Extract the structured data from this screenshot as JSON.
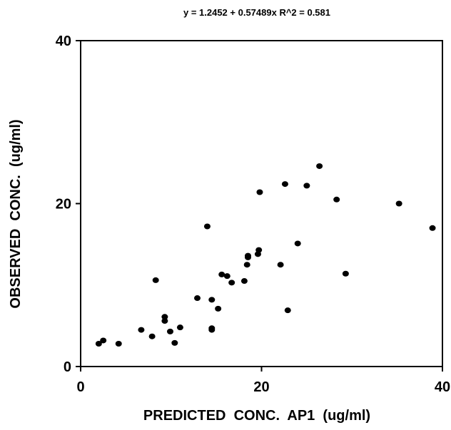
{
  "chart_data": {
    "type": "scatter",
    "title": "y = 1.2452 + 0.57489x   R^2 = 0.581",
    "xlabel": "PREDICTED  CONC.  AP1  (ug/ml)",
    "ylabel": "OBSERVED  CONC.  (ug/ml)",
    "xlim": [
      0,
      40
    ],
    "ylim": [
      0,
      40
    ],
    "xticks": [
      "0",
      "20",
      "40"
    ],
    "yticks": [
      "0",
      "20",
      "40"
    ],
    "grid": false,
    "series": [
      {
        "marker_color": "#000000",
        "x": [
          2,
          2.5,
          4.2,
          6.7,
          7.9,
          8.3,
          9.3,
          9.3,
          9.9,
          10.4,
          11.0,
          12.9,
          14.0,
          14.5,
          14.5,
          14.5,
          15.2,
          15.6,
          16.2,
          16.7,
          18.1,
          18.4,
          18.5,
          18.5,
          19.6,
          19.7,
          19.8,
          22.1,
          22.6,
          22.9,
          24.0,
          25.0,
          26.4,
          28.3,
          29.3,
          35.2,
          38.9
        ],
        "y": [
          2.8,
          3.2,
          2.8,
          4.5,
          3.7,
          10.6,
          6.1,
          5.6,
          4.3,
          2.9,
          4.8,
          8.4,
          17.2,
          8.2,
          4.7,
          4.5,
          7.1,
          11.3,
          11.1,
          10.3,
          10.5,
          12.5,
          13.6,
          13.4,
          13.8,
          14.3,
          21.4,
          12.5,
          22.4,
          6.9,
          15.1,
          22.2,
          24.6,
          20.5,
          11.4,
          20.0,
          17.0
        ]
      }
    ]
  }
}
